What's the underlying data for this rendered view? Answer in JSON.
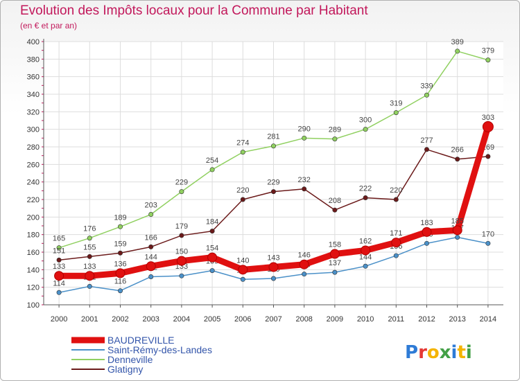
{
  "chart_data": {
    "type": "line",
    "title": "Evolution des Impôts locaux pour la Commune par Habitant",
    "subtitle": "(en € et par an)",
    "x": [
      "2000",
      "2001",
      "2002",
      "2003",
      "2004",
      "2005",
      "2006",
      "2007",
      "2008",
      "2009",
      "2010",
      "2011",
      "2012",
      "2013",
      "2014"
    ],
    "ylim": [
      100,
      400
    ],
    "yticks": [
      100,
      120,
      140,
      160,
      180,
      200,
      220,
      240,
      260,
      280,
      300,
      320,
      340,
      360,
      380,
      400
    ],
    "grid": true,
    "legend_position": "bottom-left",
    "series": [
      {
        "name": "BAUDREVILLE",
        "color": "#e01010",
        "values": [
          133,
          133,
          136,
          144,
          150,
          154,
          140,
          143,
          146,
          158,
          162,
          171,
          183,
          185,
          303
        ]
      },
      {
        "name": "Saint-Rémy-des-Landes",
        "color": "#4a90c8",
        "values": [
          114,
          121,
          116,
          132,
          133,
          139,
          129,
          130,
          135,
          137,
          144,
          156,
          170,
          177,
          170
        ]
      },
      {
        "name": "Denneville",
        "color": "#90d060",
        "values": [
          165,
          176,
          189,
          203,
          229,
          254,
          274,
          281,
          290,
          289,
          300,
          319,
          339,
          389,
          379
        ]
      },
      {
        "name": "Glatigny",
        "color": "#6b1a1a",
        "values": [
          151,
          155,
          159,
          166,
          179,
          184,
          220,
          229,
          232,
          208,
          222,
          220,
          277,
          266,
          269
        ]
      }
    ]
  },
  "brand": {
    "logo_text": "Proxiti",
    "letter_colors": [
      "#2e7bd6",
      "#e53935",
      "#f4b400",
      "#43a047",
      "#2e7bd6",
      "#f4b400",
      "#43a047"
    ]
  }
}
